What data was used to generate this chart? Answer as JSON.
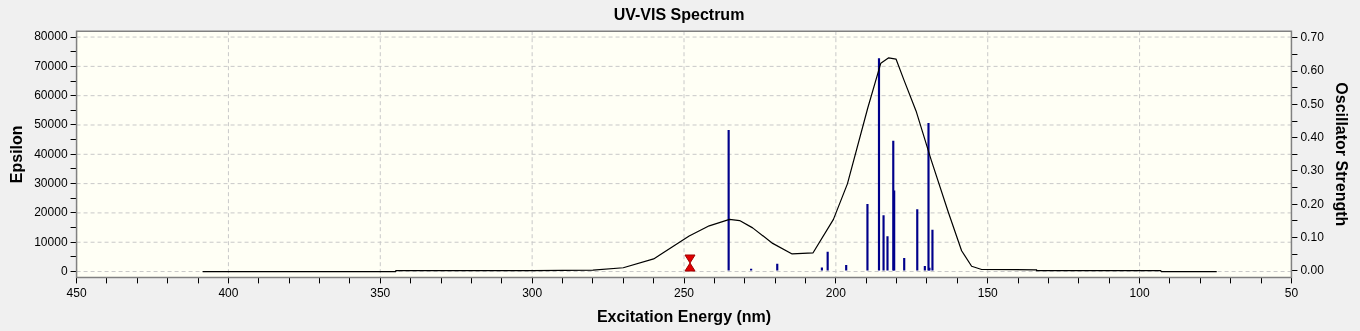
{
  "chart_data": {
    "type": "line",
    "title": "UV-VIS Spectrum",
    "xlabel": "Excitation Energy (nm)",
    "ylabel": "Epsilon",
    "y2label": "Oscillator Strength",
    "xlim": [
      450,
      50
    ],
    "xticks": [
      450,
      {
        "value": 440,
        "label": null
      },
      {
        "value": 430,
        "label": null
      },
      {
        "value": 420,
        "label": null
      },
      {
        "value": 410,
        "label": null
      },
      400,
      {
        "value": 390,
        "label": null
      },
      {
        "value": 380,
        "label": null
      },
      {
        "value": 370,
        "label": null
      },
      {
        "value": 360,
        "label": null
      },
      350,
      {
        "value": 340,
        "label": null
      },
      {
        "value": 330,
        "label": null
      },
      {
        "value": 320,
        "label": null
      },
      {
        "value": 310,
        "label": null
      },
      300,
      {
        "value": 290,
        "label": null
      },
      {
        "value": 280,
        "label": null
      },
      {
        "value": 270,
        "label": null
      },
      {
        "value": 260,
        "label": null
      },
      250,
      {
        "value": 240,
        "label": null
      },
      {
        "value": 230,
        "label": null
      },
      {
        "value": 220,
        "label": null
      },
      {
        "value": 210,
        "label": null
      },
      200,
      {
        "value": 190,
        "label": null
      },
      {
        "value": 180,
        "label": null
      },
      {
        "value": 170,
        "label": null
      },
      {
        "value": 160,
        "label": null
      },
      150,
      {
        "value": 140,
        "label": null
      },
      {
        "value": 130,
        "label": null
      },
      {
        "value": 120,
        "label": null
      },
      {
        "value": 110,
        "label": null
      },
      100,
      {
        "value": 90,
        "label": null
      },
      {
        "value": 80,
        "label": null
      },
      {
        "value": 70,
        "label": null
      },
      {
        "value": 60,
        "label": null
      },
      50
    ],
    "ylim": [
      -2000,
      82000
    ],
    "yticks": [
      0,
      {
        "value": 5000,
        "label": null
      },
      10000,
      {
        "value": 15000,
        "label": null
      },
      20000,
      {
        "value": 25000,
        "label": null
      },
      30000,
      {
        "value": 35000,
        "label": null
      },
      40000,
      {
        "value": 45000,
        "label": null
      },
      50000,
      {
        "value": 55000,
        "label": null
      },
      60000,
      {
        "value": 65000,
        "label": null
      },
      70000,
      {
        "value": 75000,
        "label": null
      },
      80000
    ],
    "y2lim": [
      -0.02,
      0.72
    ],
    "y2ticks": [
      {
        "value": 0,
        "label": "0.00"
      },
      {
        "value": 0.05,
        "label": null
      },
      {
        "value": 0.1,
        "label": "0.10"
      },
      {
        "value": 0.15,
        "label": null
      },
      {
        "value": 0.2,
        "label": "0.20"
      },
      {
        "value": 0.25,
        "label": null
      },
      {
        "value": 0.3,
        "label": "0.30"
      },
      {
        "value": 0.35,
        "label": null
      },
      {
        "value": 0.4,
        "label": "0.40"
      },
      {
        "value": 0.45,
        "label": null
      },
      {
        "value": 0.5,
        "label": "0.50"
      },
      {
        "value": 0.55,
        "label": null
      },
      {
        "value": 0.6,
        "label": "0.60"
      },
      {
        "value": 0.65,
        "label": null
      },
      {
        "value": 0.7,
        "label": "0.70"
      }
    ],
    "grid": true,
    "legend": false,
    "marker": "none",
    "line_style": "solid",
    "series": [
      {
        "color": "#000000",
        "x": [
          408.5,
          345,
          344.9,
          300,
          280,
          270,
          260,
          248.3,
          241.7,
          235,
          231.7,
          227.4,
          220.8,
          214.4,
          207.5,
          200.8,
          196.2,
          189.5,
          185.2,
          182.6,
          180.2,
          177.6,
          173.6,
          168.6,
          163,
          158.6,
          155.3,
          152,
          134,
          133.9,
          93,
          92.9,
          74.6
        ],
        "values": [
          0,
          0,
          300,
          300,
          500,
          1300,
          4300,
          12100,
          15600,
          17800,
          17400,
          14900,
          9600,
          6000,
          6400,
          17800,
          29900,
          55800,
          71100,
          72900,
          72500,
          65400,
          54800,
          38000,
          20300,
          7100,
          1800,
          700,
          600,
          300,
          300,
          0,
          0
        ]
      },
      {
        "type": "bar",
        "axis": "y2",
        "color": "#00008b",
        "x": [
          235.3,
          227.9,
          219.3,
          204.6,
          202.7,
          196.6,
          189.6,
          185.8,
          184.3,
          183,
          181.1,
          180.8,
          177.5,
          173.2,
          170.7,
          169.5,
          169.2,
          168.2
        ],
        "values": [
          0.422,
          0.005,
          0.02,
          0.009,
          0.056,
          0.016,
          0.2,
          0.638,
          0.166,
          0.103,
          0.39,
          0.24,
          0.037,
          0.184,
          0.013,
          0.443,
          0.008,
          0.122
        ]
      }
    ]
  }
}
